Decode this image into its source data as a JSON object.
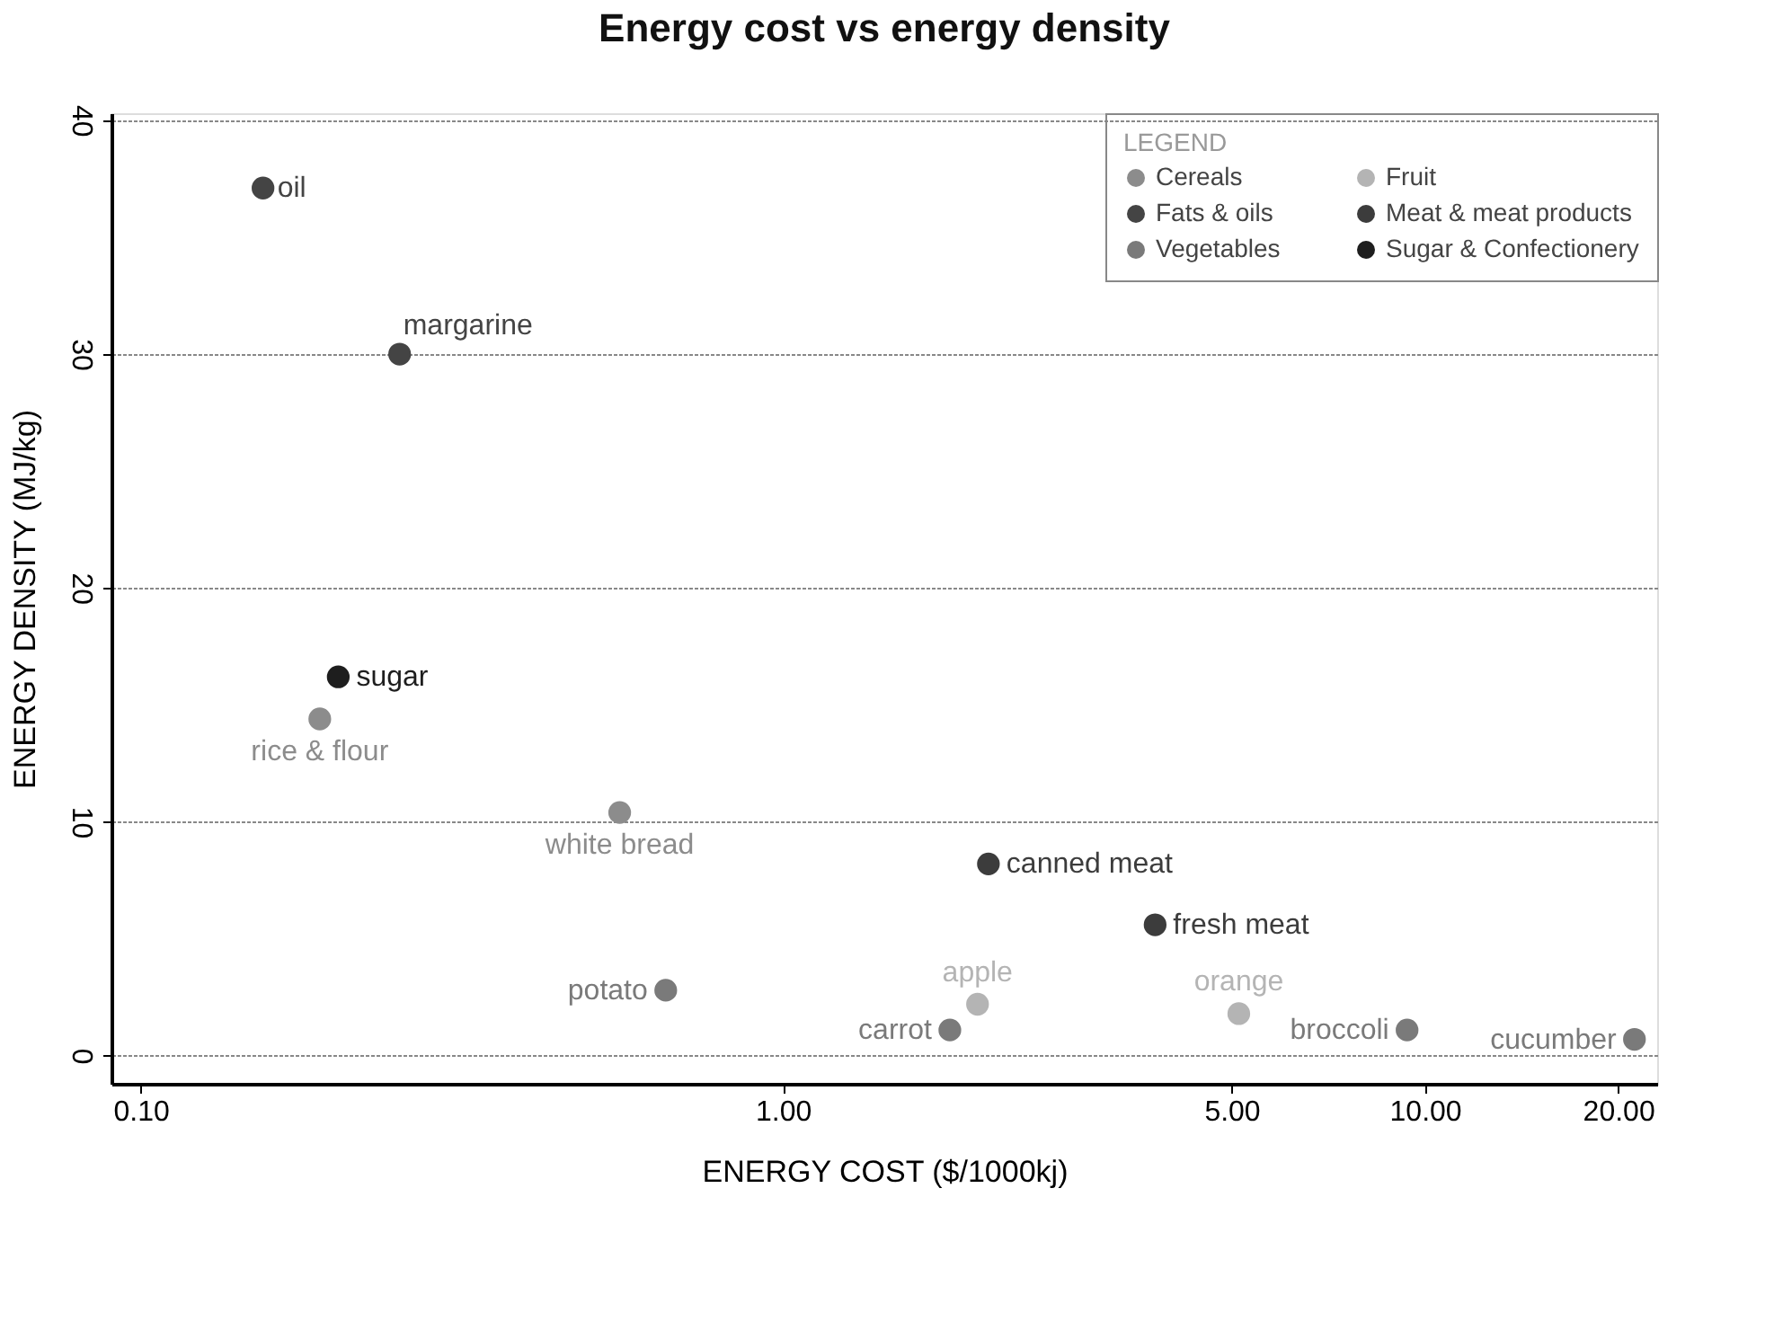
{
  "chart_data": {
    "type": "scatter",
    "title": "Energy cost vs energy density",
    "xlabel": "ENERGY COST ($/1000kj)",
    "ylabel": "ENERGY DENSITY (MJ/kg)",
    "legend_title": "LEGEND",
    "legend": "top right",
    "log": "x",
    "grid": "y",
    "marker": "circle",
    "xlim": [
      0.09,
      23
    ],
    "ylim": [
      -1.2,
      40.3
    ],
    "xticks": [
      {
        "value": 0.1,
        "label": "0.10"
      },
      {
        "value": 1,
        "label": "1.00"
      },
      {
        "value": 5,
        "label": "5.00"
      },
      {
        "value": 10,
        "label": "10.00"
      },
      {
        "value": 20,
        "label": "20.00"
      }
    ],
    "yticks": [
      0,
      10,
      20,
      30,
      40
    ],
    "series": [
      {
        "name": "Cereals",
        "color": "#8c8c8c",
        "x": [
          0.19,
          0.557
        ],
        "values": [
          14.4,
          10.4
        ]
      },
      {
        "name": "Fats & oils",
        "color": "#444444",
        "x": [
          0.155,
          0.253
        ],
        "values": [
          37.1,
          30.0
        ]
      },
      {
        "name": "Vegetables",
        "color": "#7a7a7a",
        "x": [
          0.657,
          1.82,
          9.38,
          21.2
        ],
        "values": [
          2.8,
          1.1,
          1.1,
          0.7
        ]
      },
      {
        "name": "Fruit",
        "color": "#b4b4b4",
        "x": [
          2.01,
          5.13
        ],
        "values": [
          2.2,
          1.8
        ]
      },
      {
        "name": "Meat & meat products",
        "color": "#3c3c3c",
        "x": [
          2.09,
          3.8
        ],
        "values": [
          8.2,
          5.6
        ]
      },
      {
        "name": "Sugar & Confectionery",
        "color": "#1e1e1e",
        "x": [
          0.203
        ],
        "values": [
          16.2
        ]
      }
    ],
    "annotations": [
      {
        "text": "oil",
        "x": 0.155,
        "y": 37.1
      },
      {
        "text": "margarine",
        "x": 0.253,
        "y": 30.0
      },
      {
        "text": "sugar",
        "x": 0.203,
        "y": 16.2
      },
      {
        "text": "rice & flour",
        "x": 0.19,
        "y": 14.4
      },
      {
        "text": "white bread",
        "x": 0.557,
        "y": 10.4
      },
      {
        "text": "potato",
        "x": 0.657,
        "y": 2.8
      },
      {
        "text": "canned meat",
        "x": 2.09,
        "y": 8.2
      },
      {
        "text": "fresh meat",
        "x": 3.8,
        "y": 5.6
      },
      {
        "text": "apple",
        "x": 2.01,
        "y": 2.2
      },
      {
        "text": "carrot",
        "x": 1.82,
        "y": 1.1
      },
      {
        "text": "orange",
        "x": 5.13,
        "y": 1.8
      },
      {
        "text": "broccoli",
        "x": 9.38,
        "y": 1.1
      },
      {
        "text": "cucumber",
        "x": 21.2,
        "y": 0.7
      }
    ]
  }
}
